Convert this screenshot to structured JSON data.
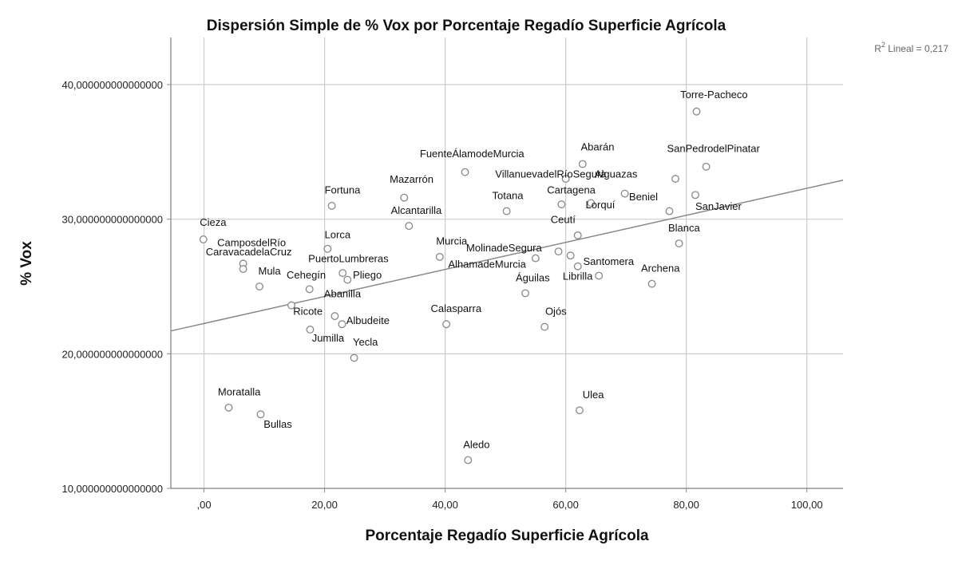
{
  "chart_data": {
    "type": "scatter",
    "title": "Dispersión Simple de % Vox por Porcentaje Regadío Superficie Agrícola",
    "xlabel": "Porcentaje Regadío Superficie Agrícola",
    "ylabel": "% Vox",
    "xlim": [
      -5.5,
      106
    ],
    "ylim": [
      10,
      43.5
    ],
    "x_ticks": [
      0,
      20,
      40,
      60,
      80,
      100
    ],
    "x_tick_labels": [
      ",00",
      "20,00",
      "40,00",
      "60,00",
      "80,00",
      "100,00"
    ],
    "y_ticks": [
      10,
      20,
      30,
      40
    ],
    "y_tick_labels": [
      "10,000000000000000",
      "20,000000000000000",
      "30,000000000000000",
      "40,000000000000000"
    ],
    "grid": true,
    "fit_line": {
      "type": "linear",
      "x": [
        -5.5,
        106
      ],
      "y": [
        21.7,
        32.9
      ]
    },
    "r2_label": {
      "prefix": "R",
      "sup": "2",
      "text": " Lineal = 0,217"
    },
    "colors": {
      "marker_stroke": "#888888",
      "fit_line": "#888888",
      "grid": "#cccccc",
      "axis": "#888888"
    },
    "points": [
      {
        "name": "Torre-Pacheco",
        "x": 81.7,
        "y": 38.0,
        "lx": 79.0,
        "ly": 39.0
      },
      {
        "name": "SanPedrodelPinatar",
        "x": 83.3,
        "y": 33.9,
        "lx": 76.8,
        "ly": 35.0
      },
      {
        "name": "Abarán",
        "x": 62.8,
        "y": 34.1,
        "lx": 62.5,
        "ly": 35.1
      },
      {
        "name": "FuenteÁlamodeMurcia",
        "x": 43.3,
        "y": 33.5,
        "lx": 35.8,
        "ly": 34.6
      },
      {
        "name": "VillanuevadelRíoSegura",
        "x": 60.0,
        "y": 33.0,
        "lx": 48.3,
        "ly": 33.1
      },
      {
        "name": "Alguazas",
        "x": 78.2,
        "y": 33.0,
        "lx": 64.8,
        "ly": 33.1
      },
      {
        "name": "Mazarrón",
        "x": 33.2,
        "y": 31.6,
        "lx": 30.8,
        "ly": 32.7
      },
      {
        "name": "Fortuna",
        "x": 21.2,
        "y": 31.0,
        "lx": 20.0,
        "ly": 31.9
      },
      {
        "name": "Cartagena",
        "x": 59.3,
        "y": 31.1,
        "lx": 56.9,
        "ly": 31.9
      },
      {
        "name": "Totana",
        "x": 50.2,
        "y": 30.6,
        "lx": 47.8,
        "ly": 31.5
      },
      {
        "name": "Beniel",
        "x": 77.2,
        "y": 30.6,
        "lx": 70.5,
        "ly": 31.4
      },
      {
        "name": "SanJavier",
        "x": 81.5,
        "y": 31.8,
        "lx": 81.5,
        "ly": 30.7
      },
      {
        "name": "Lorquí",
        "x": 69.8,
        "y": 31.9,
        "lx": 63.3,
        "ly": 30.8
      },
      {
        "name": "lorqui-dot",
        "x": 64.2,
        "y": 31.2,
        "lx": null,
        "ly": null
      },
      {
        "name": "Alcantarilla",
        "x": 34.0,
        "y": 29.5,
        "lx": 31.0,
        "ly": 30.4
      },
      {
        "name": "Cieza",
        "x": -0.1,
        "y": 28.5,
        "lx": -0.7,
        "ly": 29.5
      },
      {
        "name": "Ceutí",
        "x": 62.0,
        "y": 28.8,
        "lx": 57.5,
        "ly": 29.7
      },
      {
        "name": "Blanca",
        "x": 78.8,
        "y": 28.2,
        "lx": 77.0,
        "ly": 29.1
      },
      {
        "name": "CamposdelRío",
        "x": 6.5,
        "y": 26.7,
        "lx": 2.2,
        "ly": 28.0
      },
      {
        "name": "Lorca",
        "x": 20.5,
        "y": 27.8,
        "lx": 20.0,
        "ly": 28.6
      },
      {
        "name": "CaravacadelaCruz",
        "x": 6.5,
        "y": 26.3,
        "lx": 0.3,
        "ly": 27.3
      },
      {
        "name": "Murcia",
        "x": 39.1,
        "y": 27.2,
        "lx": 38.5,
        "ly": 28.1
      },
      {
        "name": "MolinadeSegura",
        "x": 58.8,
        "y": 27.6,
        "lx": 43.5,
        "ly": 27.6
      },
      {
        "name": "molina-dot",
        "x": 60.8,
        "y": 27.3,
        "lx": null,
        "ly": null
      },
      {
        "name": "PuertoLumbreras",
        "x": 23.0,
        "y": 26.0,
        "lx": 17.3,
        "ly": 26.8
      },
      {
        "name": "AlhamadeMurcia",
        "x": 55.0,
        "y": 27.1,
        "lx": 40.5,
        "ly": 26.4
      },
      {
        "name": "Santomera",
        "x": 62.0,
        "y": 26.5,
        "lx": 62.9,
        "ly": 26.6
      },
      {
        "name": "Archena",
        "x": 74.3,
        "y": 25.2,
        "lx": 72.5,
        "ly": 26.1
      },
      {
        "name": "Mula",
        "x": 9.2,
        "y": 25.0,
        "lx": 9.0,
        "ly": 25.9
      },
      {
        "name": "Cehegín",
        "x": 17.5,
        "y": 24.8,
        "lx": 13.7,
        "ly": 25.6
      },
      {
        "name": "Pliego",
        "x": 23.8,
        "y": 25.5,
        "lx": 24.7,
        "ly": 25.6
      },
      {
        "name": "Librilla",
        "x": 65.5,
        "y": 25.8,
        "lx": 59.5,
        "ly": 25.5
      },
      {
        "name": "Águilas",
        "x": 53.3,
        "y": 24.5,
        "lx": 51.7,
        "ly": 25.4
      },
      {
        "name": "Abanilla",
        "x": 14.5,
        "y": 23.6,
        "lx": 19.9,
        "ly": 24.2
      },
      {
        "name": "Ricote",
        "x": 21.7,
        "y": 22.8,
        "lx": 14.8,
        "ly": 22.9
      },
      {
        "name": "Calasparra",
        "x": 40.2,
        "y": 22.2,
        "lx": 37.6,
        "ly": 23.1
      },
      {
        "name": "Ojós",
        "x": 56.5,
        "y": 22.0,
        "lx": 56.6,
        "ly": 22.9
      },
      {
        "name": "Albudeite",
        "x": 22.9,
        "y": 22.2,
        "lx": 23.6,
        "ly": 22.2
      },
      {
        "name": "Jumilla",
        "x": 17.6,
        "y": 21.8,
        "lx": 17.9,
        "ly": 20.9
      },
      {
        "name": "Yecla",
        "x": 24.9,
        "y": 19.7,
        "lx": 24.7,
        "ly": 20.6
      },
      {
        "name": "Moratalla",
        "x": 4.1,
        "y": 16.0,
        "lx": 2.3,
        "ly": 16.9
      },
      {
        "name": "Bullas",
        "x": 9.4,
        "y": 15.5,
        "lx": 9.9,
        "ly": 14.5
      },
      {
        "name": "Ulea",
        "x": 62.3,
        "y": 15.8,
        "lx": 62.8,
        "ly": 16.7
      },
      {
        "name": "Aledo",
        "x": 43.8,
        "y": 12.1,
        "lx": 43.0,
        "ly": 13.0
      }
    ]
  }
}
